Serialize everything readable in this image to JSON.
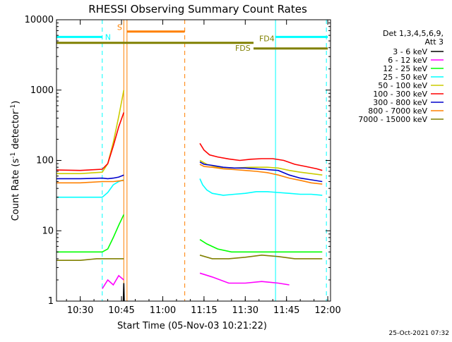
{
  "chart_data": {
    "type": "line",
    "title": "RHESSI Observing Summary Count Rates",
    "xlabel": "Start Time (05-Nov-03 10:21:22)",
    "ylabel_main": "Count Rate (s",
    "ylabel_sup1": "-1",
    "ylabel_mid": " detector",
    "ylabel_sup2": "-1",
    "ylabel_end": ")",
    "y_scale": "log",
    "ylim": [
      1,
      10000
    ],
    "xlim": [
      "10:21:22",
      "12:01:00"
    ],
    "x_tick_labels": [
      "10:30",
      "10:45",
      "11:00",
      "11:15",
      "11:30",
      "11:45",
      "12:00"
    ],
    "y_tick_labels": [
      "1",
      "10",
      "100",
      "1000",
      "10000"
    ],
    "legend": {
      "header_line1": "Det 1,3,4,5,6,9,",
      "header_line2": "Att 3",
      "entries": [
        {
          "label": "3 - 6 keV",
          "color": "#000000"
        },
        {
          "label": "6 - 12 keV",
          "color": "#ff00ff"
        },
        {
          "label": "12 - 25 keV",
          "color": "#00ff00"
        },
        {
          "label": "25 - 50 keV",
          "color": "#00ffff"
        },
        {
          "label": "50 - 100 keV",
          "color": "#cccc00"
        },
        {
          "label": "100 - 300 keV",
          "color": "#ff0000"
        },
        {
          "label": "300 - 800 keV",
          "color": "#0000cc"
        },
        {
          "label": "800 - 7000 keV",
          "color": "#ff8000"
        },
        {
          "label": "7000 - 15000 keV",
          "color": "#808000"
        }
      ]
    },
    "flag_labels": {
      "n": "N",
      "s": "S",
      "fd4": "FD4",
      "fds": "FDS"
    },
    "series": [
      {
        "name": "3 - 6 keV",
        "color": "#000000",
        "segments": [
          [
            [
              "10:45:40",
              1
            ],
            [
              "10:45:50",
              1.8
            ],
            [
              "10:46:00",
              1
            ]
          ]
        ]
      },
      {
        "name": "6 - 12 keV",
        "color": "#ff00ff",
        "segments": [
          [
            [
              "10:38:00",
              1.5
            ],
            [
              "10:40:00",
              2
            ],
            [
              "10:42:00",
              1.7
            ],
            [
              "10:44:00",
              2.3
            ],
            [
              "10:45:50",
              2
            ]
          ],
          [
            [
              "11:13:30",
              2.5
            ],
            [
              "11:18:00",
              2.2
            ],
            [
              "11:24:00",
              1.8
            ],
            [
              "11:30:00",
              1.8
            ],
            [
              "11:36:00",
              1.9
            ],
            [
              "11:42:00",
              1.8
            ],
            [
              "11:46:00",
              1.7
            ]
          ]
        ]
      },
      {
        "name": "12 - 25 keV",
        "color": "#00ff00",
        "segments": [
          [
            [
              "10:21:22",
              5
            ],
            [
              "10:30:00",
              5
            ],
            [
              "10:38:00",
              5
            ],
            [
              "10:40:00",
              5.5
            ],
            [
              "10:42:00",
              8
            ],
            [
              "10:44:00",
              12
            ],
            [
              "10:45:50",
              17
            ]
          ],
          [
            [
              "11:13:30",
              7.5
            ],
            [
              "11:16:00",
              6.5
            ],
            [
              "11:20:00",
              5.5
            ],
            [
              "11:25:00",
              5
            ],
            [
              "11:30:00",
              5
            ],
            [
              "11:35:00",
              5
            ],
            [
              "11:40:00",
              5
            ],
            [
              "11:45:00",
              5
            ],
            [
              "11:50:00",
              5
            ],
            [
              "11:58:00",
              5
            ]
          ]
        ]
      },
      {
        "name": "25 - 50 keV",
        "color": "#00ffff",
        "segments": [
          [
            [
              "10:21:22",
              30
            ],
            [
              "10:26:00",
              30
            ],
            [
              "10:30:00",
              30
            ],
            [
              "10:36:00",
              30
            ],
            [
              "10:38:00",
              30
            ],
            [
              "10:40:00",
              35
            ],
            [
              "10:42:00",
              45
            ],
            [
              "10:44:00",
              50
            ],
            [
              "10:45:50",
              53
            ]
          ],
          [
            [
              "11:13:30",
              55
            ],
            [
              "11:14:30",
              45
            ],
            [
              "11:16:00",
              38
            ],
            [
              "11:18:00",
              34
            ],
            [
              "11:22:00",
              32
            ],
            [
              "11:26:00",
              33
            ],
            [
              "11:30:00",
              34
            ],
            [
              "11:34:00",
              36
            ],
            [
              "11:38:00",
              36
            ],
            [
              "11:42:00",
              35
            ],
            [
              "11:46:00",
              34
            ],
            [
              "11:50:00",
              33
            ],
            [
              "11:54:00",
              33
            ],
            [
              "11:58:00",
              32
            ]
          ]
        ]
      },
      {
        "name": "50 - 100 keV",
        "color": "#cccc00",
        "segments": [
          [
            [
              "10:21:22",
              65
            ],
            [
              "10:30:00",
              65
            ],
            [
              "10:38:00",
              68
            ],
            [
              "10:40:00",
              90
            ],
            [
              "10:42:00",
              180
            ],
            [
              "10:44:00",
              420
            ],
            [
              "10:45:50",
              1000
            ]
          ],
          [
            [
              "11:13:30",
              100
            ],
            [
              "11:16:00",
              88
            ],
            [
              "11:20:00",
              80
            ],
            [
              "11:26:00",
              78
            ],
            [
              "11:32:00",
              80
            ],
            [
              "11:38:00",
              80
            ],
            [
              "11:42:00",
              78
            ],
            [
              "11:46:00",
              72
            ],
            [
              "11:50:00",
              68
            ],
            [
              "11:54:00",
              65
            ],
            [
              "11:58:00",
              62
            ]
          ]
        ]
      },
      {
        "name": "100 - 300 keV",
        "color": "#ff0000",
        "segments": [
          [
            [
              "10:21:22",
              73
            ],
            [
              "10:30:00",
              72
            ],
            [
              "10:38:00",
              75
            ],
            [
              "10:40:00",
              90
            ],
            [
              "10:42:00",
              160
            ],
            [
              "10:44:00",
              300
            ],
            [
              "10:45:50",
              480
            ]
          ],
          [
            [
              "11:13:30",
              175
            ],
            [
              "11:15:00",
              140
            ],
            [
              "11:17:00",
              120
            ],
            [
              "11:20:00",
              112
            ],
            [
              "11:24:00",
              105
            ],
            [
              "11:28:00",
              100
            ],
            [
              "11:32:00",
              104
            ],
            [
              "11:36:00",
              106
            ],
            [
              "11:40:00",
              106
            ],
            [
              "11:44:00",
              100
            ],
            [
              "11:48:00",
              88
            ],
            [
              "11:52:00",
              82
            ],
            [
              "11:56:00",
              76
            ],
            [
              "11:58:00",
              72
            ]
          ]
        ]
      },
      {
        "name": "300 - 800 keV",
        "color": "#0000cc",
        "segments": [
          [
            [
              "10:21:22",
              55
            ],
            [
              "10:30:00",
              55
            ],
            [
              "10:38:00",
              56
            ],
            [
              "10:40:00",
              55
            ],
            [
              "10:42:00",
              56
            ],
            [
              "10:44:00",
              58
            ],
            [
              "10:45:50",
              62
            ]
          ],
          [
            [
              "11:13:30",
              95
            ],
            [
              "11:15:00",
              88
            ],
            [
              "11:18:00",
              85
            ],
            [
              "11:22:00",
              80
            ],
            [
              "11:26:00",
              78
            ],
            [
              "11:30:00",
              78
            ],
            [
              "11:34:00",
              76
            ],
            [
              "11:38:00",
              74
            ],
            [
              "11:42:00",
              72
            ],
            [
              "11:46:00",
              62
            ],
            [
              "11:50:00",
              56
            ],
            [
              "11:54:00",
              53
            ],
            [
              "11:58:00",
              50
            ]
          ]
        ]
      },
      {
        "name": "800 - 7000 keV",
        "color": "#ff8000",
        "segments": [
          [
            [
              "10:21:22",
              48
            ],
            [
              "10:30:00",
              48
            ],
            [
              "10:38:00",
              50
            ],
            [
              "10:42:00",
              50
            ],
            [
              "10:45:50",
              52
            ]
          ],
          [
            [
              "11:13:30",
              88
            ],
            [
              "11:15:00",
              82
            ],
            [
              "11:18:00",
              80
            ],
            [
              "11:22:00",
              76
            ],
            [
              "11:26:00",
              74
            ],
            [
              "11:30:00",
              72
            ],
            [
              "11:34:00",
              70
            ],
            [
              "11:38:00",
              67
            ],
            [
              "11:42:00",
              62
            ],
            [
              "11:46:00",
              56
            ],
            [
              "11:50:00",
              52
            ],
            [
              "11:54:00",
              48
            ],
            [
              "11:58:00",
              46
            ]
          ]
        ]
      },
      {
        "name": "7000 - 15000 keV",
        "color": "#808000",
        "segments": [
          [
            [
              "10:21:22",
              3.8
            ],
            [
              "10:30:00",
              3.8
            ],
            [
              "10:36:00",
              4
            ],
            [
              "10:40:00",
              4
            ],
            [
              "10:45:50",
              4
            ]
          ],
          [
            [
              "11:13:30",
              4.5
            ],
            [
              "11:18:00",
              4
            ],
            [
              "11:24:00",
              4
            ],
            [
              "11:30:00",
              4.2
            ],
            [
              "11:36:00",
              4.5
            ],
            [
              "11:42:00",
              4.3
            ],
            [
              "11:48:00",
              4
            ],
            [
              "11:54:00",
              4
            ],
            [
              "11:58:00",
              4
            ]
          ]
        ]
      }
    ],
    "flags": [
      {
        "label": "N",
        "color": "#00ffff",
        "level": 5700,
        "segments": [
          [
            "10:21:22",
            "10:38:00"
          ],
          [
            "11:41:00",
            "12:00:00"
          ]
        ]
      },
      {
        "label": "S",
        "color": "#ff8000",
        "level": 6800,
        "segments": [
          [
            "10:47:00",
            "11:08:00"
          ]
        ]
      },
      {
        "label": "FD4",
        "color": "#808000",
        "level": 4700,
        "segments": [
          [
            "10:21:22",
            "11:33:00"
          ]
        ]
      },
      {
        "label": "FDS",
        "color": "#808000",
        "level": 3900,
        "segments": [
          [
            "11:33:00",
            "12:00:00"
          ]
        ]
      }
    ],
    "vlines": [
      {
        "time": "10:38:00",
        "color": "#00ffff",
        "style": "dashed"
      },
      {
        "time": "10:45:50",
        "color": "#ff8000",
        "style": "solid"
      },
      {
        "time": "10:47:00",
        "color": "#ff8000",
        "style": "solid"
      },
      {
        "time": "11:08:00",
        "color": "#ff8000",
        "style": "dashed"
      },
      {
        "time": "11:41:00",
        "color": "#00ffff",
        "style": "solid"
      },
      {
        "time": "11:59:30",
        "color": "#00ffff",
        "style": "dashed"
      }
    ],
    "grid": false,
    "legend_placement": "right"
  },
  "footer": {
    "timestamp": "25-Oct-2021 07:32"
  }
}
